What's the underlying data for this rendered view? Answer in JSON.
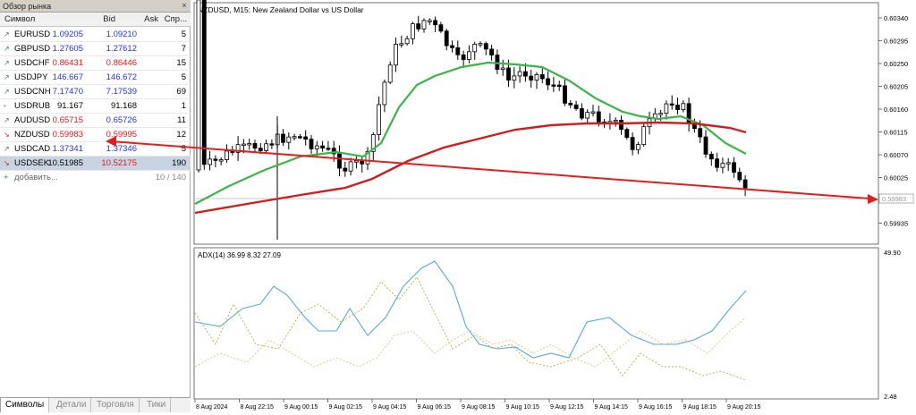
{
  "market_watch": {
    "title": "Обзор рынка",
    "close_glyph": "×",
    "columns": {
      "symbol": "Символ",
      "bid": "Bid",
      "ask": "Ask",
      "spread": "Спр..."
    },
    "rows": [
      {
        "arrow": "↗",
        "dir": "up",
        "symbol": "EURUSD",
        "bid": "1.09205",
        "ask": "1.09210",
        "spread": "5",
        "bid_color": "blue",
        "ask_color": "blue"
      },
      {
        "arrow": "↗",
        "dir": "up",
        "symbol": "GBPUSD",
        "bid": "1.27605",
        "ask": "1.27612",
        "spread": "7",
        "bid_color": "blue",
        "ask_color": "blue"
      },
      {
        "arrow": "↗",
        "dir": "up",
        "symbol": "USDCHF",
        "bid": "0.86431",
        "ask": "0.86446",
        "spread": "15",
        "bid_color": "red",
        "ask_color": "red"
      },
      {
        "arrow": "↗",
        "dir": "up",
        "symbol": "USDJPY",
        "bid": "146.667",
        "ask": "146.672",
        "spread": "5",
        "bid_color": "blue",
        "ask_color": "blue"
      },
      {
        "arrow": "↗",
        "dir": "up",
        "symbol": "USDCNH",
        "bid": "7.17470",
        "ask": "7.17539",
        "spread": "69",
        "bid_color": "blue",
        "ask_color": "blue"
      },
      {
        "arrow": "•",
        "dir": "neutral",
        "symbol": "USDRUB",
        "bid": "91.167",
        "ask": "91.168",
        "spread": "1",
        "bid_color": "black",
        "ask_color": "black"
      },
      {
        "arrow": "↗",
        "dir": "up",
        "symbol": "AUDUSD",
        "bid": "0.65715",
        "ask": "0.65726",
        "spread": "11",
        "bid_color": "red",
        "ask_color": "blue"
      },
      {
        "arrow": "↘",
        "dir": "down",
        "symbol": "NZDUSD",
        "bid": "0.59983",
        "ask": "0.59995",
        "spread": "12",
        "bid_color": "red",
        "ask_color": "red"
      },
      {
        "arrow": "↗",
        "dir": "up",
        "symbol": "USDCAD",
        "bid": "1.37341",
        "ask": "1.37346",
        "spread": "5",
        "bid_color": "blue",
        "ask_color": "blue"
      },
      {
        "arrow": "↘",
        "dir": "down",
        "symbol": "USDSEK",
        "bid": "10.51985",
        "ask": "10.52175",
        "spread": "190",
        "bid_color": "black",
        "ask_color": "red"
      }
    ],
    "add_label": "добавить...",
    "count": "10 / 140",
    "tabs": [
      "Символы",
      "Детали",
      "Торговля",
      "Тики"
    ],
    "active_tab": 0
  },
  "price_chart": {
    "title": "NZDUSD, M15:  New Zealand Dollar vs US Dollar",
    "price_labels": [
      "0.60340",
      "0.60295",
      "0.60250",
      "0.60205",
      "0.60160",
      "0.60115",
      "0.60070",
      "0.60025",
      "0.59980",
      "0.59935"
    ],
    "current_price": "0.59983",
    "colors": {
      "fast_ma": "#3cb44b",
      "slow_ma": "#cc1f1f",
      "trend_line": "#e02020"
    }
  },
  "adx_panel": {
    "title": "ADX(14) 36.99 8.32 27.09",
    "max_label": "49.90",
    "min_label": "2.48",
    "colors": {
      "adx": "#5aa9d6",
      "plus_di": "#b8a848",
      "minus_di": "#d8c47a"
    }
  },
  "time_axis": {
    "labels": [
      "8 Aug 2024",
      "8 Aug 22:15",
      "9 Aug 00:15",
      "9 Aug 02:15",
      "9 Aug 04:15",
      "9 Aug 06:15",
      "9 Aug 08:15",
      "9 Aug 10:15",
      "9 Aug 12:15",
      "9 Aug 14:15",
      "9 Aug 16:15",
      "9 Aug 18:15",
      "9 Aug 20:15"
    ]
  }
}
